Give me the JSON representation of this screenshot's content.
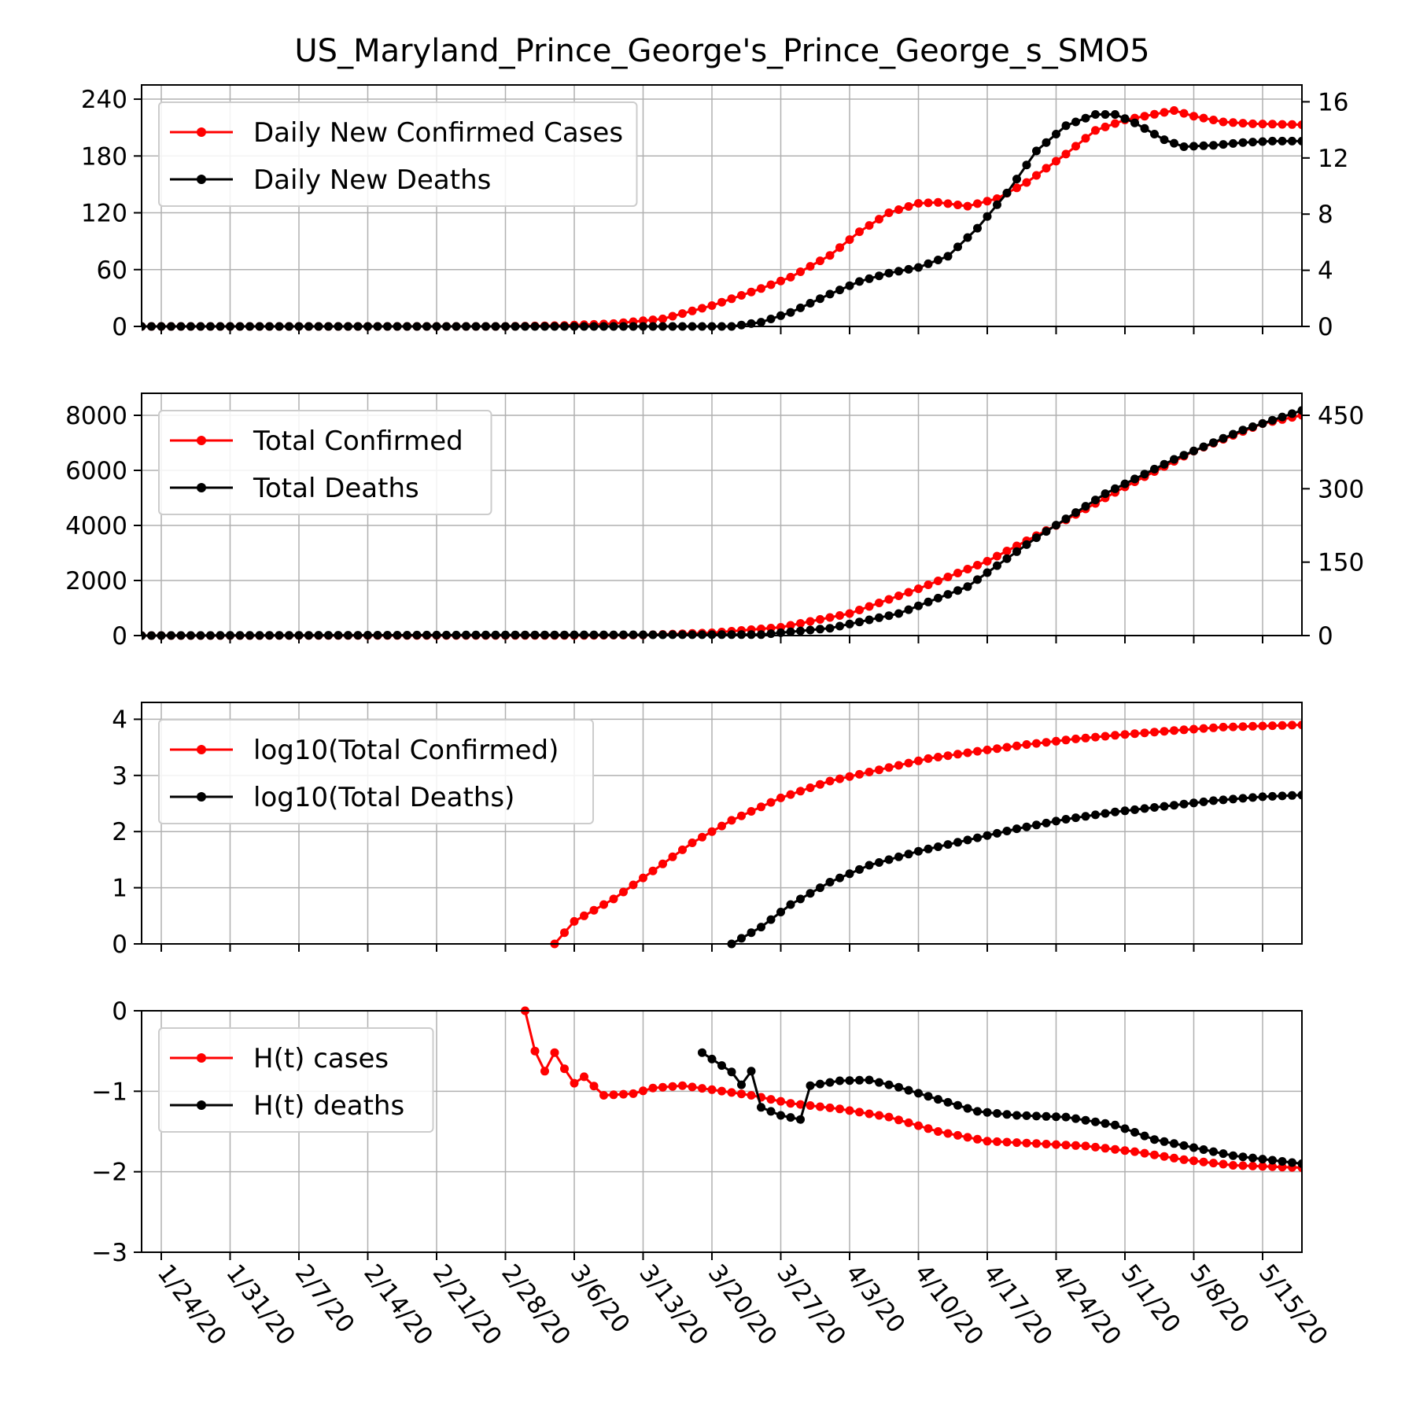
{
  "chart_data": {
    "title": "US_Maryland_Prince_George's_Prince_George_s_SMO5",
    "x_dates": [
      "1/24/20",
      "1/31/20",
      "2/7/20",
      "2/14/20",
      "2/21/20",
      "2/28/20",
      "3/6/20",
      "3/13/20",
      "3/20/20",
      "3/27/20",
      "4/3/20",
      "4/10/20",
      "4/17/20",
      "4/24/20",
      "5/1/20",
      "5/8/20",
      "5/15/20"
    ],
    "x_start": "1/22/20",
    "x_end": "5/19/20",
    "colors": {
      "cases": "#ff0000",
      "deaths": "#000000",
      "grid": "#b0b0b0"
    },
    "panels": [
      {
        "type": "line",
        "legend": [
          "Daily New Confirmed Cases",
          "Daily New Deaths"
        ],
        "legend_position": "upper-left",
        "ylim": [
          0,
          255
        ],
        "yticks": [
          "0",
          "60",
          "120",
          "180",
          "240"
        ],
        "ylim_right": [
          0,
          17.2
        ],
        "yticks_right": [
          "0",
          "4",
          "8",
          "12",
          "16"
        ],
        "series": [
          {
            "name": "Daily New Confirmed Cases",
            "axis": "left",
            "color": "#ff0000",
            "points": [
              [
                "1/22/20",
                0
              ],
              [
                "2/28/20",
                0
              ],
              [
                "3/5/20",
                1
              ],
              [
                "3/10/20",
                3
              ],
              [
                "3/15/20",
                8
              ],
              [
                "3/20/20",
                22
              ],
              [
                "3/25/20",
                40
              ],
              [
                "3/28/20",
                52
              ],
              [
                "4/1/20",
                75
              ],
              [
                "4/4/20",
                100
              ],
              [
                "4/7/20",
                120
              ],
              [
                "4/10/20",
                130
              ],
              [
                "4/12/20",
                131
              ],
              [
                "4/15/20",
                127
              ],
              [
                "4/18/20",
                135
              ],
              [
                "4/21/20",
                152
              ],
              [
                "4/25/20",
                182
              ],
              [
                "4/28/20",
                207
              ],
              [
                "5/1/20",
                218
              ],
              [
                "5/3/20",
                222
              ],
              [
                "5/6/20",
                228
              ],
              [
                "5/8/20",
                222
              ],
              [
                "5/11/20",
                216
              ],
              [
                "5/14/20",
                214
              ],
              [
                "5/19/20",
                213
              ]
            ]
          },
          {
            "name": "Daily New Deaths",
            "axis": "right",
            "color": "#000000",
            "points": [
              [
                "1/22/20",
                0
              ],
              [
                "3/17/20",
                0
              ],
              [
                "3/22/20",
                0
              ],
              [
                "3/25/20",
                0.3
              ],
              [
                "3/28/20",
                1
              ],
              [
                "4/1/20",
                2.3
              ],
              [
                "4/4/20",
                3.2
              ],
              [
                "4/7/20",
                3.8
              ],
              [
                "4/10/20",
                4.2
              ],
              [
                "4/13/20",
                5
              ],
              [
                "4/16/20",
                7
              ],
              [
                "4/19/20",
                9.5
              ],
              [
                "4/22/20",
                12.5
              ],
              [
                "4/25/20",
                14.3
              ],
              [
                "4/28/20",
                15.1
              ],
              [
                "4/30/20",
                15.1
              ],
              [
                "5/2/20",
                14.5
              ],
              [
                "5/5/20",
                13.3
              ],
              [
                "5/7/20",
                12.8
              ],
              [
                "5/10/20",
                12.9
              ],
              [
                "5/13/20",
                13.1
              ],
              [
                "5/16/20",
                13.2
              ],
              [
                "5/19/20",
                13.2
              ]
            ]
          }
        ]
      },
      {
        "type": "line",
        "legend": [
          "Total Confirmed",
          "Total Deaths"
        ],
        "legend_position": "upper-left",
        "ylim": [
          0,
          8800
        ],
        "yticks": [
          "0",
          "2000",
          "4000",
          "6000",
          "8000"
        ],
        "ylim_right": [
          0,
          495
        ],
        "yticks_right": [
          "0",
          "150",
          "300",
          "450"
        ],
        "series": [
          {
            "name": "Total Confirmed",
            "axis": "left",
            "color": "#ff0000",
            "points": [
              [
                "1/22/20",
                0
              ],
              [
                "3/6/20",
                5
              ],
              [
                "3/13/20",
                20
              ],
              [
                "3/20/20",
                100
              ],
              [
                "3/27/20",
                300
              ],
              [
                "4/3/20",
                800
              ],
              [
                "4/10/20",
                1700
              ],
              [
                "4/17/20",
                2700
              ],
              [
                "4/24/20",
                4000
              ],
              [
                "5/1/20",
                5400
              ],
              [
                "5/8/20",
                6700
              ],
              [
                "5/15/20",
                7700
              ],
              [
                "5/19/20",
                8000
              ]
            ]
          },
          {
            "name": "Total Deaths",
            "axis": "right",
            "color": "#000000",
            "points": [
              [
                "1/22/20",
                0
              ],
              [
                "3/25/20",
                2
              ],
              [
                "4/1/20",
                15
              ],
              [
                "4/8/20",
                45
              ],
              [
                "4/15/20",
                100
              ],
              [
                "4/22/20",
                200
              ],
              [
                "4/29/20",
                290
              ],
              [
                "5/6/20",
                360
              ],
              [
                "5/13/20",
                420
              ],
              [
                "5/19/20",
                460
              ]
            ]
          }
        ]
      },
      {
        "type": "line",
        "legend": [
          "log10(Total Confirmed)",
          "log10(Total Deaths)"
        ],
        "legend_position": "upper-left",
        "ylim": [
          0,
          4.3
        ],
        "yticks": [
          "0",
          "1",
          "2",
          "3",
          "4"
        ],
        "series": [
          {
            "name": "log10(Total Confirmed)",
            "axis": "left",
            "color": "#ff0000",
            "points": [
              [
                "3/4/20",
                0
              ],
              [
                "3/6/20",
                0.4
              ],
              [
                "3/10/20",
                0.8
              ],
              [
                "3/14/20",
                1.3
              ],
              [
                "3/18/20",
                1.8
              ],
              [
                "3/22/20",
                2.2
              ],
              [
                "3/27/20",
                2.6
              ],
              [
                "4/1/20",
                2.9
              ],
              [
                "4/6/20",
                3.1
              ],
              [
                "4/11/20",
                3.3
              ],
              [
                "4/16/20",
                3.43
              ],
              [
                "4/21/20",
                3.55
              ],
              [
                "4/26/20",
                3.65
              ],
              [
                "5/1/20",
                3.73
              ],
              [
                "5/6/20",
                3.8
              ],
              [
                "5/11/20",
                3.86
              ],
              [
                "5/19/20",
                3.9
              ]
            ]
          },
          {
            "name": "log10(Total Deaths)",
            "axis": "left",
            "color": "#000000",
            "points": [
              [
                "3/22/20",
                0
              ],
              [
                "3/25/20",
                0.3
              ],
              [
                "3/28/20",
                0.7
              ],
              [
                "4/1/20",
                1.1
              ],
              [
                "4/5/20",
                1.4
              ],
              [
                "4/10/20",
                1.65
              ],
              [
                "4/15/20",
                1.85
              ],
              [
                "4/20/20",
                2.05
              ],
              [
                "4/25/20",
                2.22
              ],
              [
                "4/30/20",
                2.35
              ],
              [
                "5/5/20",
                2.45
              ],
              [
                "5/10/20",
                2.55
              ],
              [
                "5/15/20",
                2.62
              ],
              [
                "5/19/20",
                2.65
              ]
            ]
          }
        ]
      },
      {
        "type": "line",
        "legend": [
          "H(t) cases",
          "H(t) deaths"
        ],
        "legend_position": "upper-left",
        "ylim": [
          -3,
          0
        ],
        "yticks": [
          "0",
          "−1",
          "−2",
          "−3"
        ],
        "series": [
          {
            "name": "H(t) cases",
            "axis": "left",
            "color": "#ff0000",
            "points": [
              [
                "3/1/20",
                0
              ],
              [
                "3/2/20",
                -0.5
              ],
              [
                "3/3/20",
                -0.75
              ],
              [
                "3/4/20",
                -0.52
              ],
              [
                "3/5/20",
                -0.72
              ],
              [
                "3/6/20",
                -0.9
              ],
              [
                "3/7/20",
                -0.82
              ],
              [
                "3/9/20",
                -1.05
              ],
              [
                "3/12/20",
                -1.03
              ],
              [
                "3/14/20",
                -0.96
              ],
              [
                "3/17/20",
                -0.93
              ],
              [
                "3/20/20",
                -0.98
              ],
              [
                "3/24/20",
                -1.05
              ],
              [
                "3/28/20",
                -1.15
              ],
              [
                "4/2/20",
                -1.22
              ],
              [
                "4/7/20",
                -1.32
              ],
              [
                "4/12/20",
                -1.5
              ],
              [
                "4/17/20",
                -1.62
              ],
              [
                "4/22/20",
                -1.65
              ],
              [
                "4/27/20",
                -1.68
              ],
              [
                "5/2/20",
                -1.75
              ],
              [
                "5/7/20",
                -1.85
              ],
              [
                "5/12/20",
                -1.92
              ],
              [
                "5/19/20",
                -1.95
              ]
            ]
          },
          {
            "name": "H(t) deaths",
            "axis": "left",
            "color": "#000000",
            "points": [
              [
                "3/19/20",
                -0.52
              ],
              [
                "3/22/20",
                -0.76
              ],
              [
                "3/23/20",
                -0.92
              ],
              [
                "3/24/20",
                -0.75
              ],
              [
                "3/25/20",
                -1.2
              ],
              [
                "3/27/20",
                -1.3
              ],
              [
                "3/29/20",
                -1.35
              ],
              [
                "3/30/20",
                -0.93
              ],
              [
                "4/2/20",
                -0.87
              ],
              [
                "4/5/20",
                -0.86
              ],
              [
                "4/8/20",
                -0.95
              ],
              [
                "4/12/20",
                -1.1
              ],
              [
                "4/16/20",
                -1.25
              ],
              [
                "4/20/20",
                -1.3
              ],
              [
                "4/25/20",
                -1.32
              ],
              [
                "4/30/20",
                -1.42
              ],
              [
                "5/4/20",
                -1.6
              ],
              [
                "5/8/20",
                -1.7
              ],
              [
                "5/12/20",
                -1.8
              ],
              [
                "5/19/20",
                -1.9
              ]
            ]
          }
        ]
      }
    ]
  }
}
